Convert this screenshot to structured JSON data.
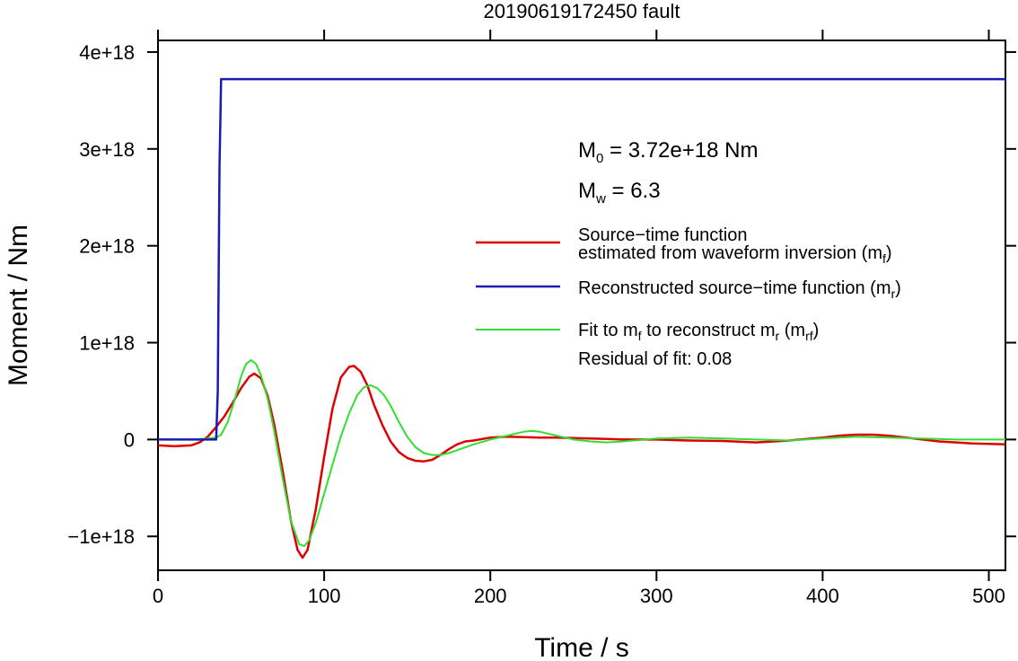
{
  "chart_data": {
    "type": "line",
    "title": "20190619172450 fault",
    "xlabel": "Time / s",
    "ylabel": "Moment / Nm",
    "xlim": [
      0,
      510
    ],
    "ylim": [
      -1.35e+18,
      4.12e+18
    ],
    "xticks": [
      0,
      100,
      200,
      300,
      400,
      500
    ],
    "xtick_labels": [
      "0",
      "100",
      "200",
      "300",
      "400",
      "500"
    ],
    "yticks": [
      -1e+18,
      0,
      1e+18,
      2e+18,
      3e+18,
      4e+18
    ],
    "ytick_labels": [
      "−1e+18",
      "0",
      "1e+18",
      "2e+18",
      "3e+18",
      "4e+18"
    ],
    "grid": false,
    "legend_position": "right-middle",
    "annotations": {
      "m0": {
        "label": "M",
        "sub": "0",
        "rest": " = 3.72e+18 Nm"
      },
      "mw": {
        "label": "M",
        "sub": "w",
        "rest": " = 6.3"
      },
      "residual": "Residual of fit: 0.08"
    },
    "series": [
      {
        "name_lines": [
          "Source−time function",
          "estimated from waveform inversion (m",
          "f",
          ")"
        ],
        "color": "#dd0000",
        "x": [
          0,
          10,
          20,
          25,
          30,
          35,
          40,
          45,
          50,
          55,
          58,
          62,
          66,
          70,
          75,
          80,
          84,
          87,
          90,
          95,
          100,
          105,
          110,
          115,
          118,
          122,
          126,
          130,
          135,
          140,
          145,
          150,
          155,
          160,
          165,
          170,
          175,
          180,
          185,
          190,
          200,
          210,
          220,
          230,
          240,
          250,
          260,
          270,
          280,
          290,
          300,
          320,
          340,
          360,
          380,
          400,
          410,
          420,
          430,
          440,
          450,
          460,
          470,
          480,
          490,
          500,
          510
        ],
        "y": [
          -6e+16,
          -7e+16,
          -6e+16,
          -3e+16,
          3e+16,
          1.3e+17,
          2.4e+17,
          3.8e+17,
          5.3e+17,
          6.5e+17,
          6.8e+17,
          6.3e+17,
          4.5e+17,
          1.5e+17,
          -3.2e+17,
          -8.4e+17,
          -1.14e+18,
          -1.22e+18,
          -1.14e+18,
          -7.2e+17,
          -1.8e+17,
          3.2e+17,
          6.4e+17,
          7.5e+17,
          7.6e+17,
          7e+17,
          5.6e+17,
          3.6e+17,
          1.5e+17,
          -2e+16,
          -1.3e+17,
          -1.9e+17,
          -2.2e+17,
          -2.25e+17,
          -2.1e+17,
          -1.6e+17,
          -1e+17,
          -5e+16,
          -2e+16,
          -1e+16,
          2e+16,
          3e+16,
          2.5e+16,
          2e+16,
          2e+16,
          1.5e+16,
          1e+16,
          5000000000000000.0,
          0,
          0,
          0,
          -1e+16,
          -1.5e+16,
          -3e+16,
          -1e+16,
          2e+16,
          4e+16,
          5e+16,
          5e+16,
          4e+16,
          2e+16,
          0,
          -2e+16,
          -3e+16,
          -4e+16,
          -4.5e+16,
          -5e+16
        ]
      },
      {
        "name_lines": [
          "Reconstructed source−time function (m",
          "r",
          ")"
        ],
        "color": "#1a1ab4",
        "x": [
          0,
          35,
          36,
          37,
          38,
          510
        ],
        "y": [
          0,
          0,
          5e+17,
          2.8e+18,
          3.72e+18,
          3.72e+18
        ]
      },
      {
        "name_lines": [
          "Fit to m",
          "f",
          " to reconstruct m",
          "r",
          " (m",
          "rf",
          ")"
        ],
        "color": "#33dd33",
        "x": [
          0,
          20,
          30,
          35,
          38,
          42,
          46,
          50,
          53,
          56,
          59,
          62,
          66,
          70,
          75,
          80,
          85,
          88,
          91,
          95,
          100,
          105,
          110,
          115,
          120,
          124,
          128,
          132,
          136,
          140,
          145,
          150,
          155,
          160,
          165,
          170,
          175,
          180,
          190,
          200,
          210,
          220,
          225,
          230,
          240,
          250,
          260,
          270,
          280,
          300,
          320,
          340,
          360,
          380,
          400,
          420,
          440,
          460,
          480,
          510
        ],
        "y": [
          0,
          0,
          1e+16,
          2e+16,
          5e+16,
          1.8e+17,
          4e+17,
          6.5e+17,
          7.8e+17,
          8.2e+17,
          7.8e+17,
          6.6e+17,
          4.2e+17,
          8e+16,
          -4e+17,
          -8.4e+17,
          -1.08e+18,
          -1.1e+18,
          -1.04e+18,
          -8.6e+17,
          -5.6e+17,
          -2.6e+17,
          3e+16,
          2.7e+17,
          4.6e+17,
          5.4e+17,
          5.6e+17,
          5.3e+17,
          4.6e+17,
          3.5e+17,
          1.8e+17,
          3e+16,
          -8e+16,
          -1.4e+17,
          -1.6e+17,
          -1.6e+17,
          -1.4e+17,
          -1.1e+17,
          -5e+16,
          0,
          4e+16,
          8e+16,
          9e+16,
          8e+16,
          4e+16,
          0,
          -2e+16,
          -3e+16,
          -2e+16,
          1e+16,
          2e+16,
          1e+16,
          0,
          -1e+16,
          1e+16,
          3e+16,
          2e+16,
          1e+16,
          0,
          0
        ]
      }
    ]
  }
}
